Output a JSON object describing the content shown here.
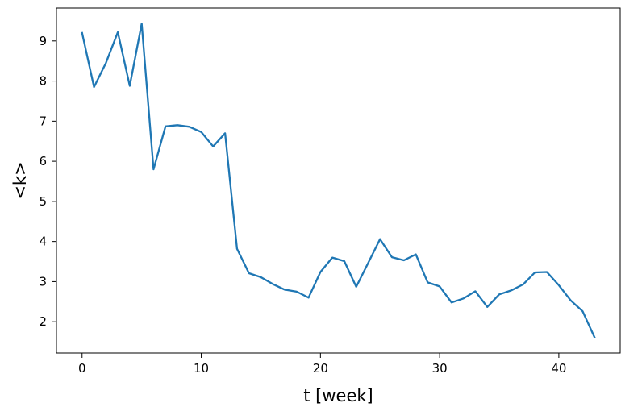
{
  "chart_data": {
    "type": "line",
    "title": "",
    "xlabel": "t [week]",
    "ylabel": "<k>",
    "xlim": [
      -2.15,
      45.15
    ],
    "ylim": [
      1.22,
      9.82
    ],
    "xticks": [
      0,
      10,
      20,
      30,
      40
    ],
    "yticks": [
      2,
      3,
      4,
      5,
      6,
      7,
      8,
      9
    ],
    "xtick_labels": [
      "0",
      "10",
      "20",
      "30",
      "40"
    ],
    "ytick_labels": [
      "2",
      "3",
      "4",
      "5",
      "6",
      "7",
      "8",
      "9"
    ],
    "grid": false,
    "legend": "none",
    "series": [
      {
        "color": "#1f77b4",
        "x": [
          0,
          1,
          2,
          3,
          4,
          5,
          6,
          7,
          8,
          9,
          10,
          11,
          12,
          13,
          14,
          15,
          16,
          17,
          18,
          19,
          20,
          21,
          22,
          23,
          24,
          25,
          26,
          27,
          28,
          29,
          30,
          31,
          32,
          33,
          34,
          35,
          36,
          37,
          38,
          39,
          40,
          41,
          42,
          43
        ],
        "y": [
          9.2,
          7.85,
          8.45,
          9.22,
          7.88,
          9.43,
          5.8,
          6.87,
          6.9,
          6.86,
          6.73,
          6.37,
          6.7,
          3.82,
          3.21,
          3.11,
          2.94,
          2.8,
          2.75,
          2.6,
          3.24,
          3.6,
          3.51,
          2.87,
          3.46,
          4.06,
          3.61,
          3.53,
          3.68,
          2.98,
          2.88,
          2.48,
          2.58,
          2.76,
          2.37,
          2.68,
          2.78,
          2.93,
          3.23,
          3.24,
          2.91,
          2.53,
          2.26,
          1.61
        ]
      }
    ]
  }
}
